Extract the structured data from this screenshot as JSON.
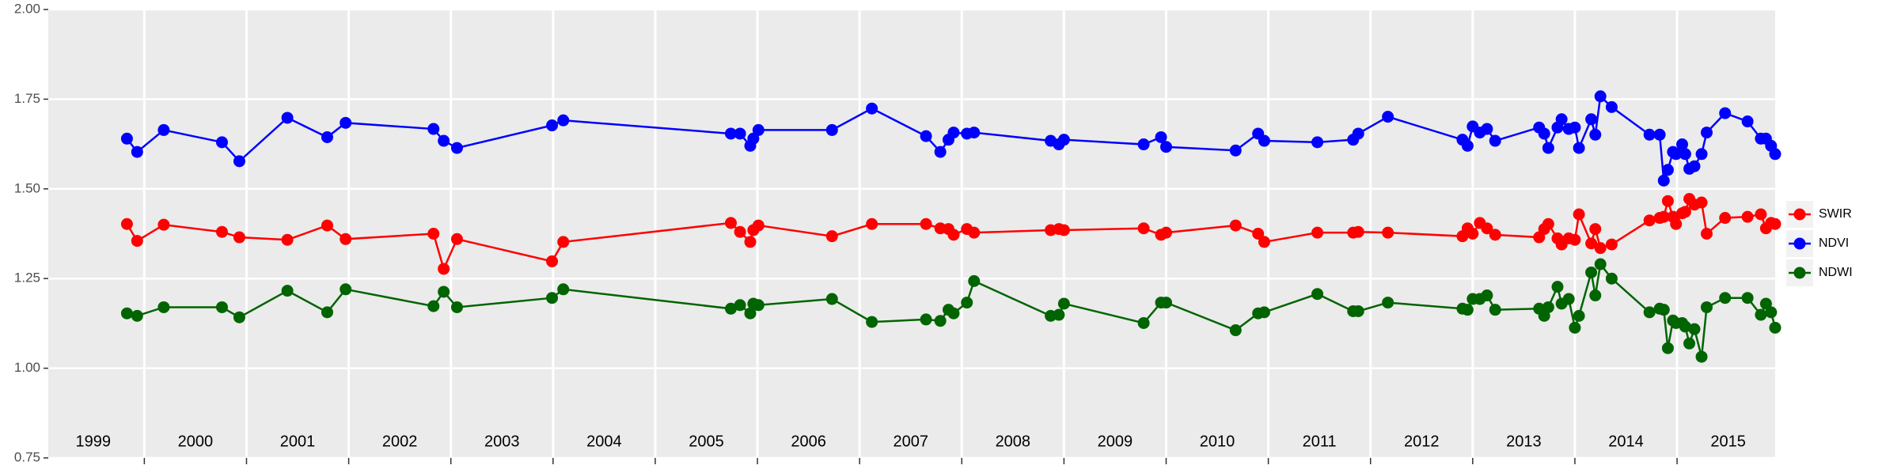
{
  "chart_data": {
    "type": "line",
    "x": [
      1999.83,
      1999.93,
      2000.19,
      2000.76,
      2000.93,
      2001.4,
      2001.79,
      2001.97,
      2002.83,
      2002.93,
      2003.06,
      2003.99,
      2004.1,
      2005.74,
      2005.83,
      2005.93,
      2005.96,
      2006.01,
      2006.73,
      2007.12,
      2007.65,
      2007.79,
      2007.87,
      2007.92,
      2008.05,
      2008.12,
      2008.87,
      2008.95,
      2009.0,
      2009.78,
      2009.95,
      2010.0,
      2010.68,
      2010.9,
      2010.96,
      2011.48,
      2011.83,
      2011.88,
      2012.17,
      2012.9,
      2012.95,
      2013.0,
      2013.07,
      2013.14,
      2013.22,
      2013.65,
      2013.7,
      2013.74,
      2013.83,
      2013.87,
      2013.94,
      2014.0,
      2014.04,
      2014.16,
      2014.2,
      2014.25,
      2014.36,
      2014.73,
      2014.83,
      2014.87,
      2014.91,
      2014.96,
      2014.99,
      2015.05,
      2015.08,
      2015.12,
      2015.17,
      2015.24,
      2015.29,
      2015.47,
      2015.69,
      2015.82,
      2015.87,
      2015.92,
      2015.96
    ],
    "series": [
      {
        "name": "SWIR",
        "color": "#ff0000",
        "values": [
          1.402,
          1.355,
          1.4,
          1.38,
          1.365,
          1.358,
          1.398,
          1.36,
          1.375,
          1.277,
          1.36,
          1.298,
          1.352,
          1.405,
          1.38,
          1.352,
          1.385,
          1.398,
          1.368,
          1.402,
          1.402,
          1.39,
          1.388,
          1.372,
          1.388,
          1.378,
          1.385,
          1.388,
          1.385,
          1.39,
          1.372,
          1.378,
          1.398,
          1.375,
          1.352,
          1.378,
          1.378,
          1.38,
          1.378,
          1.368,
          1.39,
          1.375,
          1.405,
          1.39,
          1.372,
          1.365,
          1.388,
          1.402,
          1.362,
          1.345,
          1.362,
          1.358,
          1.429,
          1.348,
          1.388,
          1.335,
          1.345,
          1.412,
          1.419,
          1.422,
          1.466,
          1.422,
          1.402,
          1.432,
          1.436,
          1.472,
          1.456,
          1.462,
          1.375,
          1.419,
          1.422,
          1.429,
          1.39,
          1.405,
          1.402
        ]
      },
      {
        "name": "NDVI",
        "color": "#0000ff",
        "values": [
          1.64,
          1.603,
          1.664,
          1.63,
          1.577,
          1.698,
          1.644,
          1.684,
          1.667,
          1.634,
          1.614,
          1.677,
          1.691,
          1.654,
          1.654,
          1.62,
          1.64,
          1.664,
          1.664,
          1.724,
          1.647,
          1.603,
          1.637,
          1.657,
          1.654,
          1.657,
          1.634,
          1.624,
          1.637,
          1.624,
          1.644,
          1.617,
          1.607,
          1.654,
          1.634,
          1.63,
          1.637,
          1.654,
          1.701,
          1.637,
          1.62,
          1.674,
          1.657,
          1.667,
          1.634,
          1.671,
          1.654,
          1.614,
          1.671,
          1.694,
          1.667,
          1.671,
          1.614,
          1.694,
          1.651,
          1.758,
          1.728,
          1.651,
          1.651,
          1.523,
          1.553,
          1.603,
          1.597,
          1.624,
          1.597,
          1.556,
          1.563,
          1.597,
          1.657,
          1.711,
          1.688,
          1.64,
          1.64,
          1.62,
          1.597
        ]
      },
      {
        "name": "NDWI",
        "color": "#006400",
        "values": [
          1.153,
          1.146,
          1.17,
          1.17,
          1.142,
          1.216,
          1.156,
          1.22,
          1.173,
          1.213,
          1.17,
          1.196,
          1.22,
          1.166,
          1.176,
          1.153,
          1.18,
          1.176,
          1.193,
          1.129,
          1.136,
          1.132,
          1.163,
          1.153,
          1.183,
          1.243,
          1.146,
          1.149,
          1.18,
          1.126,
          1.183,
          1.183,
          1.106,
          1.153,
          1.156,
          1.207,
          1.159,
          1.159,
          1.183,
          1.166,
          1.163,
          1.193,
          1.193,
          1.203,
          1.163,
          1.166,
          1.146,
          1.17,
          1.227,
          1.18,
          1.193,
          1.113,
          1.146,
          1.267,
          1.203,
          1.29,
          1.25,
          1.156,
          1.166,
          1.163,
          1.056,
          1.133,
          1.126,
          1.126,
          1.116,
          1.069,
          1.109,
          1.032,
          1.17,
          1.196,
          1.196,
          1.149,
          1.18,
          1.156,
          1.113
        ]
      }
    ],
    "xlim": [
      1999.06,
      2015.96
    ],
    "xticks": [
      {
        "value": 1999.5,
        "label": "1999"
      },
      {
        "value": 2000.5,
        "label": "2000"
      },
      {
        "value": 2001.5,
        "label": "2001"
      },
      {
        "value": 2002.5,
        "label": "2002"
      },
      {
        "value": 2003.5,
        "label": "2003"
      },
      {
        "value": 2004.5,
        "label": "2004"
      },
      {
        "value": 2005.5,
        "label": "2005"
      },
      {
        "value": 2006.5,
        "label": "2006"
      },
      {
        "value": 2007.5,
        "label": "2007"
      },
      {
        "value": 2008.5,
        "label": "2008"
      },
      {
        "value": 2009.5,
        "label": "2009"
      },
      {
        "value": 2010.5,
        "label": "2010"
      },
      {
        "value": 2011.5,
        "label": "2011"
      },
      {
        "value": 2012.5,
        "label": "2012"
      },
      {
        "value": 2013.5,
        "label": "2013"
      },
      {
        "value": 2014.5,
        "label": "2014"
      },
      {
        "value": 2015.5,
        "label": "2015"
      }
    ],
    "xgrid": [
      2000,
      2001,
      2002,
      2003,
      2004,
      2005,
      2006,
      2007,
      2008,
      2009,
      2010,
      2011,
      2012,
      2013,
      2014,
      2015
    ],
    "ylim": [
      0.75,
      2.0
    ],
    "yticks": [
      {
        "value": 0.75,
        "label": "0.75"
      },
      {
        "value": 1.0,
        "label": "1.00"
      },
      {
        "value": 1.25,
        "label": "1.25"
      },
      {
        "value": 1.5,
        "label": "1.50"
      },
      {
        "value": 1.75,
        "label": "1.75"
      },
      {
        "value": 2.0,
        "label": "2.00"
      }
    ],
    "grid": true,
    "legend": "right"
  }
}
